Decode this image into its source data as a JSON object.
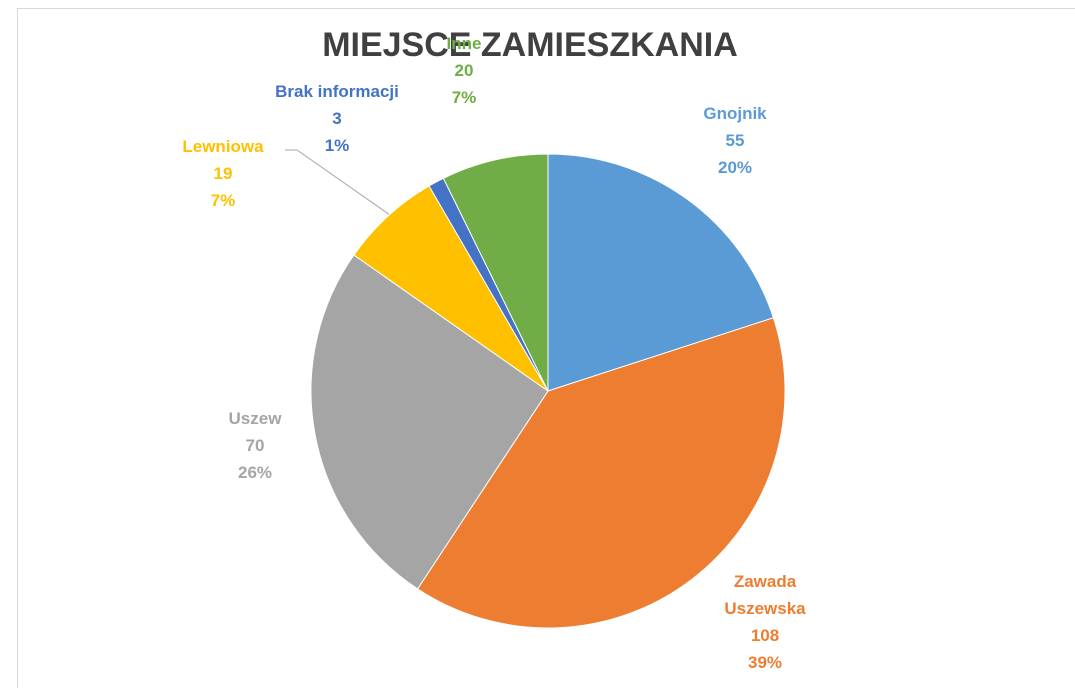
{
  "chart_data": {
    "type": "pie",
    "title": "MIEJSCE ZAMIESZKANIA",
    "categories": [
      "Gnojnik",
      "Zawada Uszewska",
      "Uszew",
      "Lewniowa",
      "Brak informacji",
      "Inne"
    ],
    "values": [
      55,
      108,
      70,
      19,
      3,
      20
    ],
    "percent_labels": [
      "20%",
      "39%",
      "26%",
      "7%",
      "1%",
      "7%"
    ],
    "colors": [
      "#5b9bd5",
      "#ed7d31",
      "#a5a5a5",
      "#ffc000",
      "#4472c4",
      "#70ad47"
    ]
  }
}
